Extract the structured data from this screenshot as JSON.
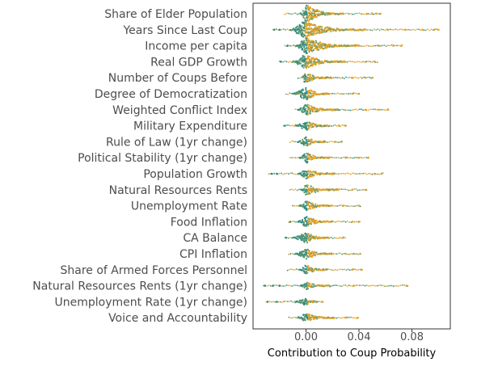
{
  "chart_data": {
    "type": "scatter",
    "subtype": "beeswarm",
    "title": "",
    "xlabel": "Contribution to Coup Probability",
    "ylabel": "",
    "xlim": [
      -0.04,
      0.109
    ],
    "xticks": [
      0.0,
      0.04,
      0.08
    ],
    "xtick_labels": [
      "0.00",
      "0.04",
      "0.08"
    ],
    "grid": false,
    "legend": "none",
    "colors": {
      "low": "#2a8d86",
      "high": "#e3a226",
      "mid": "#6f9a6a",
      "frame": "#333333",
      "text": "#4d4d4d"
    },
    "features": [
      {
        "name": "Share of Elder Population",
        "min": -0.016,
        "max": 0.057,
        "body_min": -0.004,
        "body_max": 0.028,
        "peak": 0.0,
        "width": 11,
        "outliers": [
          0.046,
          0.05,
          0.053,
          0.056
        ]
      },
      {
        "name": "Years Since Last Coup",
        "min": -0.025,
        "max": 0.1,
        "body_min": -0.012,
        "body_max": 0.045,
        "peak": -0.002,
        "width": 10,
        "outliers": [
          -0.024,
          -0.02,
          0.062,
          0.075,
          0.088,
          0.097,
          0.1
        ]
      },
      {
        "name": "Income per capita",
        "min": -0.016,
        "max": 0.073,
        "body_min": -0.008,
        "body_max": 0.04,
        "peak": 0.0,
        "width": 10,
        "outliers": [
          -0.014,
          0.055,
          0.066,
          0.072
        ]
      },
      {
        "name": "Real GDP Growth",
        "min": -0.02,
        "max": 0.055,
        "body_min": -0.01,
        "body_max": 0.03,
        "peak": -0.001,
        "width": 9,
        "outliers": [
          -0.019,
          0.045,
          0.052
        ]
      },
      {
        "name": "Number of Coups Before",
        "min": -0.006,
        "max": 0.051,
        "body_min": -0.003,
        "body_max": 0.02,
        "peak": -0.001,
        "width": 7,
        "outliers": [
          0.035,
          0.045,
          0.05
        ]
      },
      {
        "name": "Degree of Democratization",
        "min": -0.015,
        "max": 0.041,
        "body_min": -0.01,
        "body_max": 0.018,
        "peak": 0.0,
        "width": 8,
        "outliers": [
          0.035,
          0.04
        ]
      },
      {
        "name": "Weighted Conflict Index",
        "min": -0.008,
        "max": 0.063,
        "body_min": -0.006,
        "body_max": 0.025,
        "peak": 0.0,
        "width": 7,
        "outliers": [
          0.045,
          0.055,
          0.062
        ]
      },
      {
        "name": "Military Expenditure",
        "min": -0.017,
        "max": 0.031,
        "body_min": -0.008,
        "body_max": 0.018,
        "peak": 0.0,
        "width": 6,
        "outliers": [
          -0.016,
          0.025,
          0.03
        ]
      },
      {
        "name": "Rule of Law (1yr change)",
        "min": -0.012,
        "max": 0.028,
        "body_min": -0.006,
        "body_max": 0.015,
        "peak": 0.0,
        "width": 6,
        "outliers": [
          0.022,
          0.027
        ]
      },
      {
        "name": "Political Stability (1yr change)",
        "min": -0.012,
        "max": 0.048,
        "body_min": -0.005,
        "body_max": 0.018,
        "peak": 0.0,
        "width": 7,
        "outliers": [
          0.03,
          0.04,
          0.047
        ]
      },
      {
        "name": "Population Growth",
        "min": -0.028,
        "max": 0.058,
        "body_min": -0.006,
        "body_max": 0.022,
        "peak": 0.0,
        "width": 6,
        "outliers": [
          -0.026,
          -0.022,
          0.052,
          0.057
        ]
      },
      {
        "name": "Natural Resources Rents",
        "min": -0.012,
        "max": 0.046,
        "body_min": -0.004,
        "body_max": 0.025,
        "peak": 0.0,
        "width": 7,
        "outliers": [
          0.035,
          0.045
        ]
      },
      {
        "name": "Unemployment Rate",
        "min": -0.01,
        "max": 0.042,
        "body_min": -0.005,
        "body_max": 0.02,
        "peak": 0.0,
        "width": 6,
        "outliers": [
          0.028,
          0.04
        ]
      },
      {
        "name": "Food Inflation",
        "min": -0.013,
        "max": 0.041,
        "body_min": -0.006,
        "body_max": 0.02,
        "peak": 0.0,
        "width": 7,
        "outliers": [
          -0.012,
          0.035,
          0.04
        ]
      },
      {
        "name": "CA Balance",
        "min": -0.016,
        "max": 0.03,
        "body_min": -0.01,
        "body_max": 0.018,
        "peak": 0.0,
        "width": 7,
        "outliers": [
          -0.015,
          0.028
        ]
      },
      {
        "name": "CPI Inflation",
        "min": -0.013,
        "max": 0.042,
        "body_min": -0.008,
        "body_max": 0.02,
        "peak": 0.0,
        "width": 7,
        "outliers": [
          0.03,
          0.036,
          0.041
        ]
      },
      {
        "name": "Share of Armed Forces Personnel",
        "min": -0.014,
        "max": 0.043,
        "body_min": -0.005,
        "body_max": 0.016,
        "peak": 0.0,
        "width": 6,
        "outliers": [
          0.035,
          0.042
        ]
      },
      {
        "name": "Natural Resources Rents (1yr change)",
        "min": -0.032,
        "max": 0.077,
        "body_min": -0.004,
        "body_max": 0.018,
        "peak": 0.0,
        "width": 5,
        "outliers": [
          -0.031,
          -0.025,
          -0.02,
          0.036,
          0.076
        ]
      },
      {
        "name": "Unemployment Rate (1yr change)",
        "min": -0.03,
        "max": 0.013,
        "body_min": -0.008,
        "body_max": 0.008,
        "peak": 0.0,
        "width": 5,
        "outliers": [
          -0.029,
          -0.022,
          0.012
        ]
      },
      {
        "name": "Voice and Accountability",
        "min": -0.013,
        "max": 0.04,
        "body_min": -0.006,
        "body_max": 0.022,
        "peak": 0.0,
        "width": 6,
        "outliers": [
          0.03,
          0.039
        ]
      }
    ]
  }
}
